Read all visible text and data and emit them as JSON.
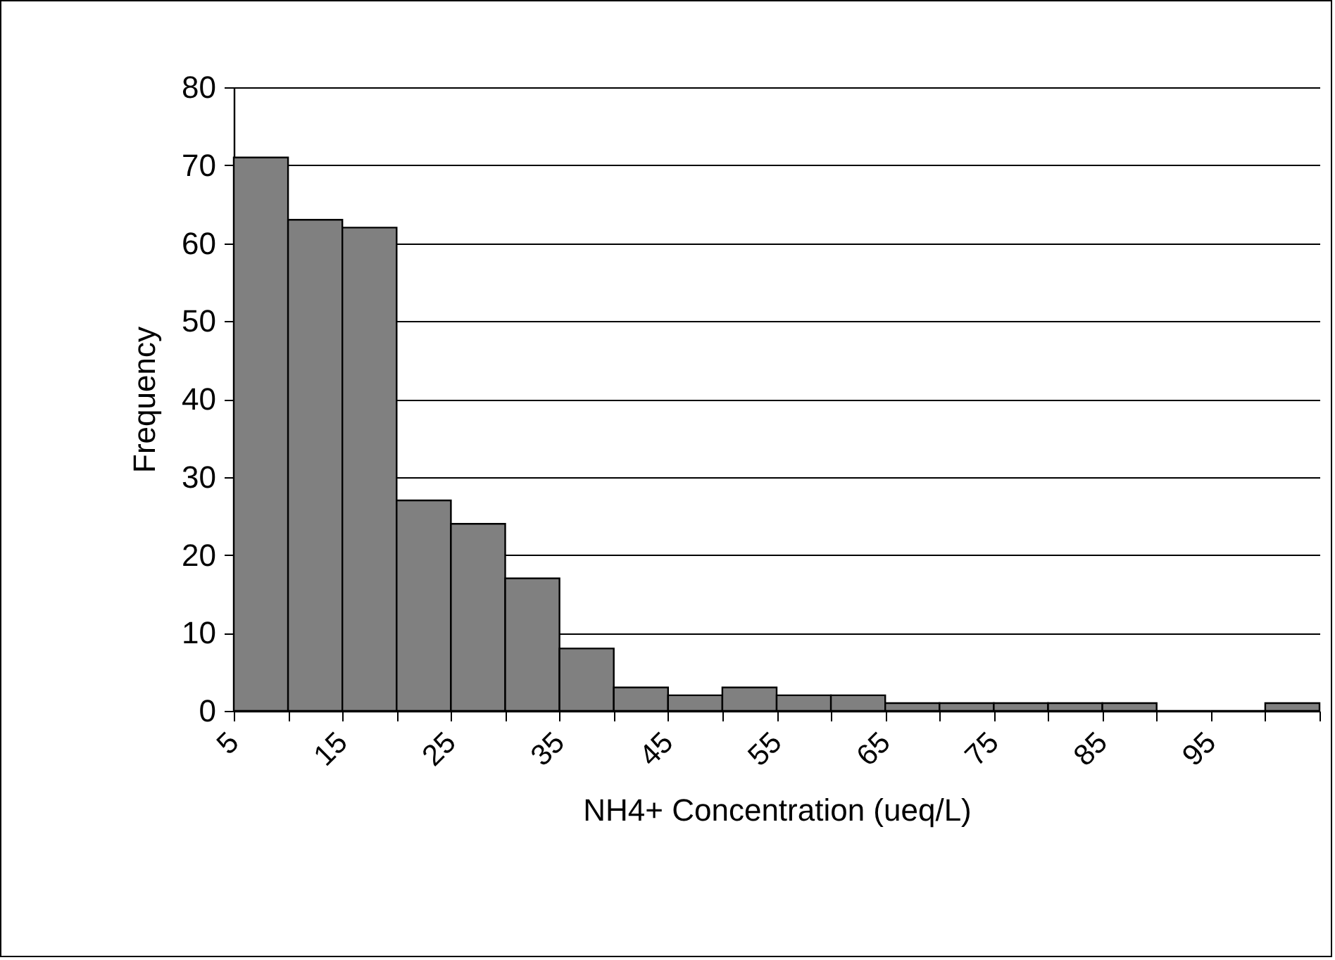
{
  "chart_data": {
    "type": "histogram",
    "xlabel": "NH4+ Concentration (ueq/L)",
    "ylabel": "Frequency",
    "bins": [
      5,
      10,
      15,
      20,
      25,
      30,
      35,
      40,
      45,
      50,
      55,
      60,
      65,
      70,
      75,
      80,
      85,
      90,
      95,
      100,
      105
    ],
    "values": [
      71,
      63,
      62,
      27,
      24,
      17,
      8,
      3,
      2,
      3,
      2,
      2,
      1,
      1,
      1,
      1,
      1,
      0,
      0,
      1
    ],
    "color": "#808080",
    "xlim": [
      5,
      105
    ],
    "xticks": [
      5,
      {
        "value": 10,
        "label": null
      },
      15,
      {
        "value": 20,
        "label": null
      },
      25,
      {
        "value": 30,
        "label": null
      },
      35,
      {
        "value": 40,
        "label": null
      },
      45,
      {
        "value": 50,
        "label": null
      },
      55,
      {
        "value": 60,
        "label": null
      },
      65,
      {
        "value": 70,
        "label": null
      },
      75,
      {
        "value": 80,
        "label": null
      },
      85,
      {
        "value": 90,
        "label": null
      },
      95,
      {
        "value": 100,
        "label": null
      },
      {
        "value": 105,
        "label": null
      }
    ],
    "ylim": [
      0,
      80
    ],
    "yticks": [
      0,
      10,
      20,
      30,
      40,
      50,
      60,
      70,
      80
    ],
    "grid": "y"
  }
}
